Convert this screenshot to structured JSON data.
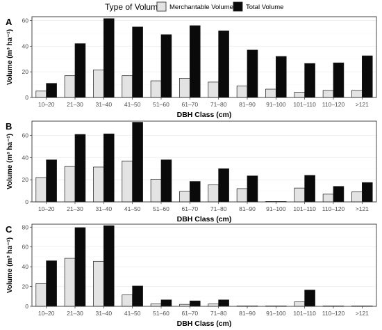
{
  "legend": {
    "title": "Type of Volume",
    "items": [
      {
        "label": "Merchantable Volume",
        "color": "#e3e3e3"
      },
      {
        "label": "Total Volume",
        "color": "#0a0a0a"
      }
    ]
  },
  "chart_data": [
    {
      "type": "bar",
      "panel_label": "A",
      "xlabel": "DBH Class (cm)",
      "ylabel": "Volume (m³ ha⁻¹)",
      "ylim": [
        0,
        63
      ],
      "yticks": [
        0,
        20,
        40,
        60
      ],
      "grid": true,
      "categories": [
        "10–20",
        "21–30",
        "31–40",
        "41–50",
        "51–60",
        "61–70",
        "71–80",
        "81–90",
        "91–100",
        "101–110",
        "110–120",
        ">121"
      ],
      "series": [
        {
          "name": "Merchantable Volume",
          "color": "#e3e3e3",
          "values": [
            5,
            17,
            21.5,
            17,
            13,
            15,
            12,
            9,
            6.5,
            4,
            5.5,
            5.5
          ]
        },
        {
          "name": "Total Volume",
          "color": "#0a0a0a",
          "values": [
            11,
            42,
            61.5,
            55,
            49,
            56,
            52,
            37,
            32,
            26.5,
            27,
            32.5
          ]
        }
      ]
    },
    {
      "type": "bar",
      "panel_label": "B",
      "xlabel": "DBH Class (cm)",
      "ylabel": "Volume (m³ ha⁻¹)",
      "ylim": [
        0,
        73
      ],
      "yticks": [
        0,
        20,
        40,
        60
      ],
      "grid": true,
      "categories": [
        "10–20",
        "21–30",
        "31–40",
        "41–50",
        "51–60",
        "61–70",
        "71–80",
        "81–90",
        "91–100",
        "101–110",
        "110–120",
        ">121"
      ],
      "series": [
        {
          "name": "Merchantable Volume",
          "color": "#e3e3e3",
          "values": [
            22,
            32,
            31.5,
            37,
            20.5,
            9.5,
            15.5,
            12,
            0,
            12.5,
            7,
            9
          ]
        },
        {
          "name": "Total Volume",
          "color": "#0a0a0a",
          "values": [
            38,
            61,
            61.5,
            72,
            38,
            18.5,
            30,
            23.5,
            0,
            24,
            14,
            17.5
          ]
        }
      ]
    },
    {
      "type": "bar",
      "panel_label": "C",
      "xlabel": "DBH Class (cm)",
      "ylabel": "Volume (m³ ha⁻¹)",
      "ylim": [
        0,
        83
      ],
      "yticks": [
        0,
        20,
        40,
        60,
        80
      ],
      "grid": true,
      "categories": [
        "10–20",
        "21–30",
        "31–40",
        "41–50",
        "51–60",
        "61–70",
        "71–80",
        "81–90",
        "91–100",
        "101–110",
        "110–120",
        ">121"
      ],
      "series": [
        {
          "name": "Merchantable Volume",
          "color": "#e3e3e3",
          "values": [
            23,
            48.5,
            45.5,
            11.5,
            2.5,
            2,
            2.5,
            0,
            0,
            4.5,
            0,
            0
          ]
        },
        {
          "name": "Total Volume",
          "color": "#0a0a0a",
          "values": [
            46,
            79.5,
            81.5,
            20.5,
            6.5,
            5.5,
            6.5,
            0,
            0,
            16.5,
            0,
            0
          ]
        }
      ]
    }
  ]
}
